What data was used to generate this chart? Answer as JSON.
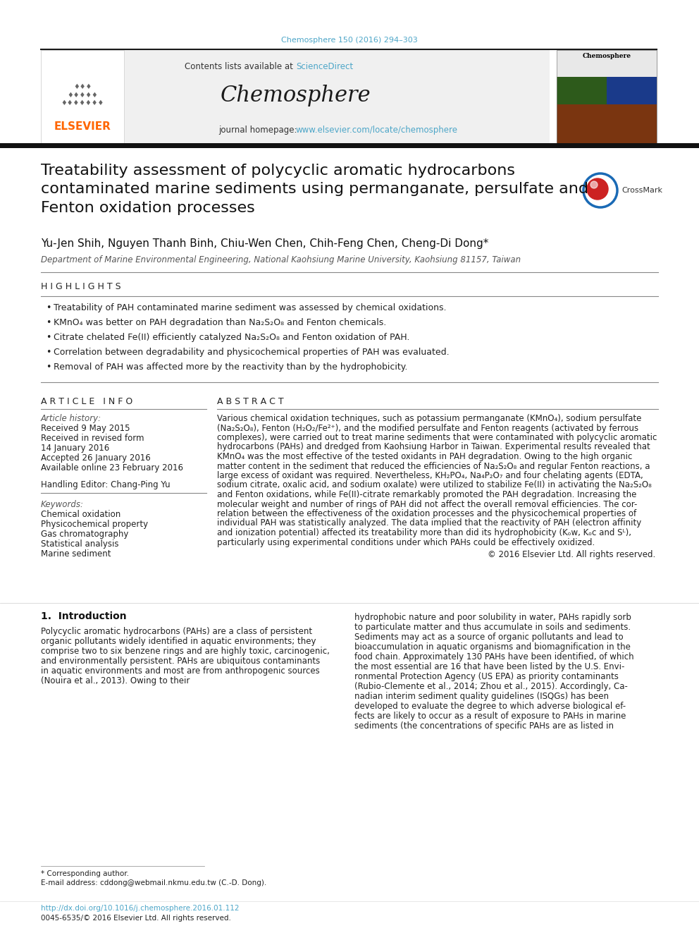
{
  "page_width": 9.92,
  "page_height": 13.23,
  "bg_color": "#ffffff",
  "top_citation": "Chemosphere 150 (2016) 294–303",
  "top_citation_color": "#4da6c8",
  "journal_header_bg": "#f0f0f0",
  "journal_name": "Chemosphere",
  "contents_text": "Contents lists available at ",
  "sciencedirect_text": "ScienceDirect",
  "sciencedirect_color": "#4da6c8",
  "homepage_text": "journal homepage: ",
  "homepage_url": "www.elsevier.com/locate/chemosphere",
  "homepage_url_color": "#4da6c8",
  "elsevier_color": "#ff6600",
  "paper_title": "Treatability assessment of polycyclic aromatic hydrocarbons\ncontaminated marine sediments using permanganate, persulfate and\nFenton oxidation processes",
  "authors": "Yu-Jen Shih, Nguyen Thanh Binh, Chiu-Wen Chen, Chih-Feng Chen, Cheng-Di Dong",
  "affiliation": "Department of Marine Environmental Engineering, National Kaohsiung Marine University, Kaohsiung 81157, Taiwan",
  "highlights_title": "H I G H L I G H T S",
  "highlights": [
    "Treatability of PAH contaminated marine sediment was assessed by chemical oxidations.",
    "KMnO₄ was better on PAH degradation than Na₂S₂O₈ and Fenton chemicals.",
    "Citrate chelated Fe(II) efficiently catalyzed Na₂S₂O₈ and Fenton oxidation of PAH.",
    "Correlation between degradability and physicochemical properties of PAH was evaluated.",
    "Removal of PAH was affected more by the reactivity than by the hydrophobicity."
  ],
  "article_info_title": "A R T I C L E   I N F O",
  "article_history_label": "Article history:",
  "received_1": "Received 9 May 2015",
  "received_revised_1": "Received in revised form",
  "received_revised_2": "14 January 2016",
  "accepted": "Accepted 26 January 2016",
  "available": "Available online 23 February 2016",
  "handling_editor_label": "Handling Editor: Chang-Ping Yu",
  "keywords_label": "Keywords:",
  "keywords": [
    "Chemical oxidation",
    "Physicochemical property",
    "Gas chromatography",
    "Statistical analysis",
    "Marine sediment"
  ],
  "abstract_title": "A B S T R A C T",
  "abstract_lines": [
    "Various chemical oxidation techniques, such as potassium permanganate (KMnO₄), sodium persulfate",
    "(Na₂S₂O₈), Fenton (H₂O₂/Fe²⁺), and the modified persulfate and Fenton reagents (activated by ferrous",
    "complexes), were carried out to treat marine sediments that were contaminated with polycyclic aromatic",
    "hydrocarbons (PAHs) and dredged from Kaohsiung Harbor in Taiwan. Experimental results revealed that",
    "KMnO₄ was the most effective of the tested oxidants in PAH degradation. Owing to the high organic",
    "matter content in the sediment that reduced the efficiencies of Na₂S₂O₈ and regular Fenton reactions, a",
    "large excess of oxidant was required. Nevertheless, KH₂PO₄, Na₄P₂O₇ and four chelating agents (EDTA,",
    "sodium citrate, oxalic acid, and sodium oxalate) were utilized to stabilize Fe(II) in activating the Na₂S₂O₈",
    "and Fenton oxidations, while Fe(II)-citrate remarkably promoted the PAH degradation. Increasing the",
    "molecular weight and number of rings of PAH did not affect the overall removal efficiencies. The cor-",
    "relation between the effectiveness of the oxidation processes and the physicochemical properties of",
    "individual PAH was statistically analyzed. The data implied that the reactivity of PAH (electron affinity",
    "and ionization potential) affected its treatability more than did its hydrophobicity (Kₒw, Kₒc and Sᴸ),",
    "particularly using experimental conditions under which PAHs could be effectively oxidized."
  ],
  "copyright_text": "© 2016 Elsevier Ltd. All rights reserved.",
  "section1_title": "1.  Introduction",
  "intro_left_lines": [
    "Polycyclic aromatic hydrocarbons (PAHs) are a class of persistent",
    "organic pollutants widely identified in aquatic environments; they",
    "comprise two to six benzene rings and are highly toxic, carcinogenic,",
    "and environmentally persistent. PAHs are ubiquitous contaminants",
    "in aquatic environments and most are from anthropogenic sources",
    "(Nouira et al., 2013). Owing to their"
  ],
  "intro_right_lines": [
    "hydrophobic nature and poor solubility in water, PAHs rapidly sorb",
    "to particulate matter and thus accumulate in soils and sediments.",
    "Sediments may act as a source of organic pollutants and lead to",
    "bioaccumulation in aquatic organisms and biomagnification in the",
    "food chain. Approximately 130 PAHs have been identified, of which",
    "the most essential are 16 that have been listed by the U.S. Envi-",
    "ronmental Protection Agency (US EPA) as priority contaminants",
    "(Rubio-Clemente et al., 2014; Zhou et al., 2015). Accordingly, Ca-",
    "nadian interim sediment quality guidelines (ISQGs) has been",
    "developed to evaluate the degree to which adverse biological ef-",
    "fects are likely to occur as a result of exposure to PAHs in marine",
    "sediments (the concentrations of specific PAHs are as listed in"
  ],
  "footnote_asterisk": "* Corresponding author.",
  "footnote_email": "E-mail address: cddong@webmail.nkmu.edu.tw (C.-D. Dong).",
  "doi_text": "http://dx.doi.org/10.1016/j.chemosphere.2016.01.112",
  "issn_text": "0045-6535/© 2016 Elsevier Ltd. All rights reserved.",
  "thick_bar_color": "#1a1a1a",
  "thin_line_color": "#888888"
}
